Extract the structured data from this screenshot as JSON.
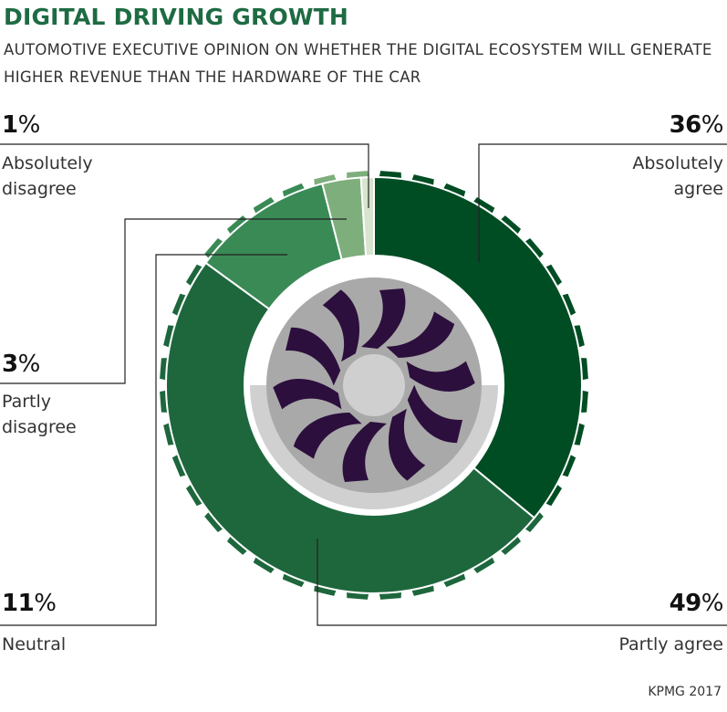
{
  "header": {
    "title": "DIGITAL DRIVING GROWTH",
    "subtitle": "AUTOMOTIVE EXECUTIVE OPINION ON WHETHER THE DIGITAL ECOSYSTEM WILL GENERATE HIGHER REVENUE THAN THE HARDWARE OF THE CAR"
  },
  "chart_data": {
    "type": "pie",
    "categories": [
      "Absolutely agree",
      "Partly agree",
      "Neutral",
      "Partly disagree",
      "Absolutely disagree"
    ],
    "values": [
      36,
      49,
      11,
      3,
      1
    ],
    "labels": [
      "36%",
      "49%",
      "11%",
      "3%",
      "1%"
    ],
    "colors": [
      "#004d23",
      "#1e673d",
      "#3a8a56",
      "#7eae7c",
      "#d7e4cf"
    ],
    "legend": "none"
  },
  "source": "KPMG 2017"
}
